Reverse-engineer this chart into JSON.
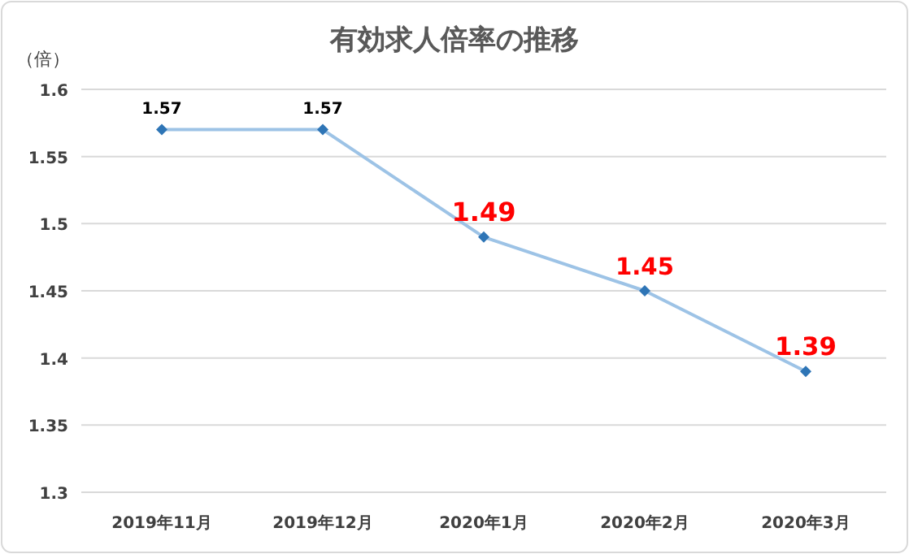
{
  "chart_data": {
    "type": "line",
    "title": "有効求人倍率の推移",
    "ylabel": "（倍）",
    "categories": [
      "2019年11月",
      "2019年12月",
      "2020年1月",
      "2020年2月",
      "2020年3月"
    ],
    "series": [
      {
        "color": "#9dc3e6",
        "values": [
          1.57,
          1.57,
          1.49,
          1.45,
          1.39
        ]
      }
    ],
    "ylim": [
      1.3,
      1.6
    ],
    "yticks": [
      1.3,
      1.35,
      1.4,
      1.45,
      1.5,
      1.55,
      1.6
    ],
    "grid": "y",
    "marker": "diamond",
    "data_labels": true
  }
}
